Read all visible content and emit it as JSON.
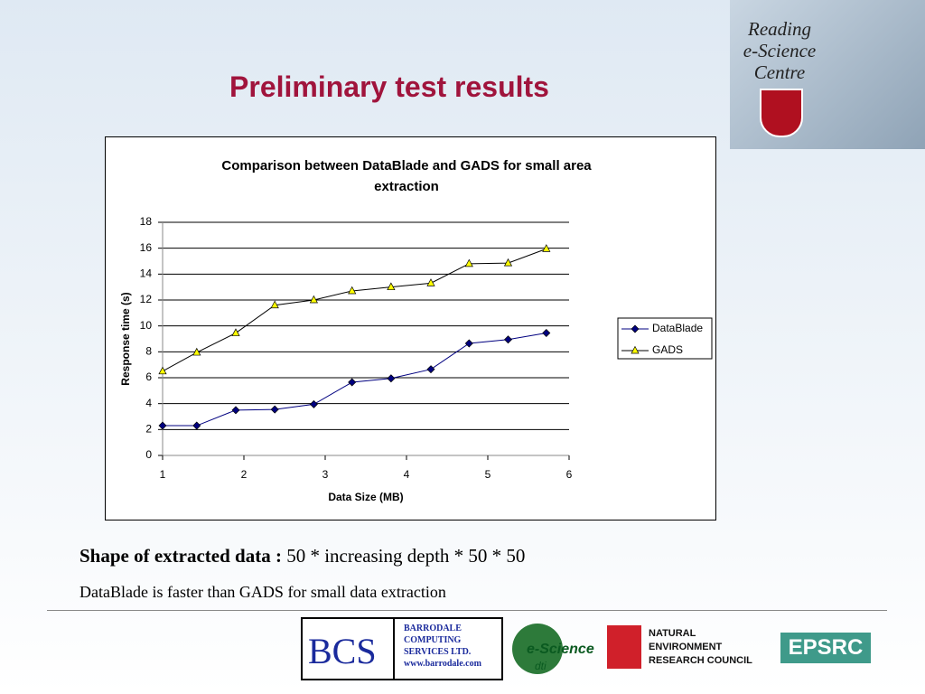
{
  "slide": {
    "title": "Preliminary test results",
    "logo_lines": [
      "Reading",
      "e-Science",
      "Centre"
    ],
    "shape_label": "Shape of extracted data :",
    "shape_text": "50 * increasing depth * 50 * 50",
    "note": "DataBlade is faster than GADS for small data extraction",
    "bcs": "BCS",
    "bcs_lines": [
      "BARRODALE",
      "COMPUTING",
      "SERVICES LTD.",
      "www.barrodale.com"
    ],
    "escience": "e-Science",
    "dti": "dti",
    "nerc_lines": [
      "NATURAL",
      "ENVIRONMENT",
      "RESEARCH COUNCIL"
    ],
    "epsrc": "EPSRC"
  },
  "chart_data": {
    "type": "line",
    "title": "Comparison between DataBlade and GADS for small area extraction",
    "x_label": "Data Size (MB)",
    "y_label": "Response time (s)",
    "x": [
      1,
      1.42,
      1.9,
      2.38,
      2.86,
      3.33,
      3.81,
      4.3,
      4.77,
      5.25,
      5.72
    ],
    "series": [
      {
        "name": "DataBlade",
        "color": "#000080",
        "marker": "diamond",
        "marker_color": "#000080",
        "values": [
          2.3,
          2.3,
          3.5,
          3.55,
          3.95,
          5.65,
          5.95,
          6.65,
          8.65,
          8.95,
          9.45
        ]
      },
      {
        "name": "GADS",
        "color": "#000000",
        "marker": "triangle",
        "marker_color": "#ffff00",
        "values": [
          6.5,
          7.95,
          9.45,
          11.6,
          12.0,
          12.7,
          13.0,
          13.3,
          14.8,
          14.85,
          15.95
        ]
      }
    ],
    "xlim": [
      1,
      6
    ],
    "xticks": [
      1,
      2,
      3,
      4,
      5,
      6
    ],
    "ylim": [
      0,
      18
    ],
    "yticks": [
      0,
      2,
      4,
      6,
      8,
      10,
      12,
      14,
      16,
      18
    ],
    "grid": true,
    "legend": "right"
  }
}
